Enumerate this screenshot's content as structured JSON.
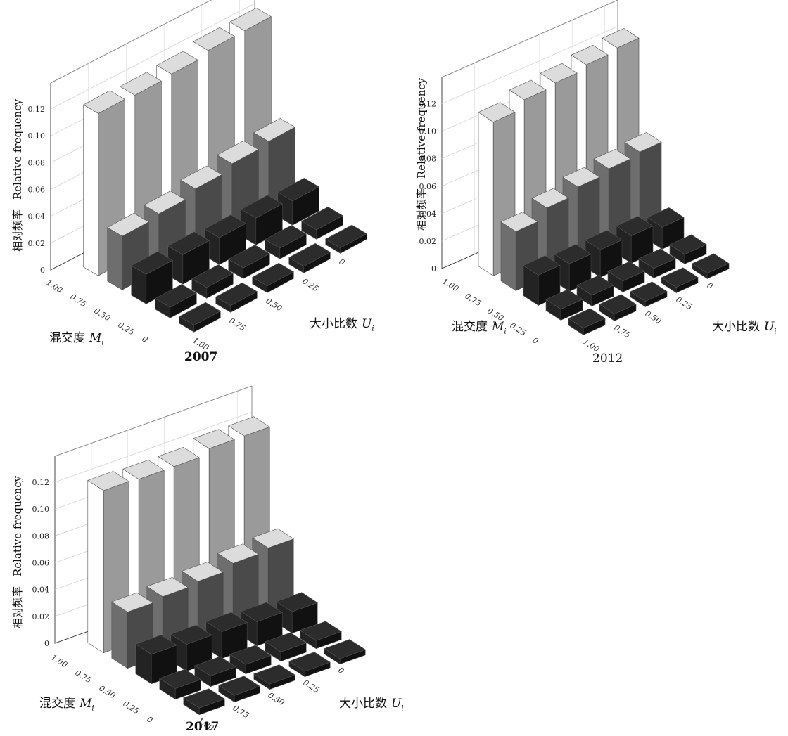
{
  "chart_data": [
    {
      "type": "bar3d",
      "title": "2007",
      "ylabel_en": "Relative frequency",
      "ylabel_cn": "相对频率",
      "xlabel_m": "混交度",
      "xlabel_m_sym": "M",
      "xlabel_m_sub": "i",
      "xlabel_u": "大小比数",
      "xlabel_u_sym": "U",
      "xlabel_u_sub": "i",
      "yticks": [
        "0",
        "0.02",
        "0.04",
        "0.06",
        "0.08",
        "0.10",
        "0.12"
      ],
      "ylim": [
        0,
        0.13
      ],
      "m_ticks": [
        "1.00",
        "0.75",
        "0.50",
        "0.25",
        "0"
      ],
      "u_ticks": [
        "0",
        "0.25",
        "0.50",
        "0.75",
        "1.00"
      ],
      "grid": true,
      "values": [
        [
          0.121,
          0.12,
          0.121,
          0.124,
          0.124
        ],
        [
          0.04,
          0.042,
          0.046,
          0.05,
          0.052
        ],
        [
          0.022,
          0.022,
          0.02,
          0.02,
          0.018
        ],
        [
          0.008,
          0.008,
          0.008,
          0.008,
          0.007
        ],
        [
          0.005,
          0.005,
          0.005,
          0.005,
          0.004
        ]
      ]
    },
    {
      "type": "bar3d",
      "title": "2012",
      "ylabel_en": "Relative frequency",
      "ylabel_cn": "相对频率",
      "xlabel_m": "混交度",
      "xlabel_m_sym": "M",
      "xlabel_m_sub": "i",
      "xlabel_u": "大小比数",
      "xlabel_u_sym": "U",
      "xlabel_u_sub": "i",
      "yticks": [
        "0",
        "0.02",
        "0.04",
        "0.06",
        "0.08",
        "0.10",
        "0.12"
      ],
      "ylim": [
        0,
        0.13
      ],
      "m_ticks": [
        "1.00",
        "0.75",
        "0.50",
        "0.25",
        "0"
      ],
      "u_ticks": [
        "0",
        "0.25",
        "0.50",
        "0.75",
        "1.00"
      ],
      "grid": true,
      "values": [
        [
          0.112,
          0.118,
          0.12,
          0.123,
          0.125
        ],
        [
          0.043,
          0.05,
          0.055,
          0.058,
          0.06
        ],
        [
          0.022,
          0.02,
          0.02,
          0.02,
          0.016
        ],
        [
          0.008,
          0.008,
          0.008,
          0.007,
          0.007
        ],
        [
          0.005,
          0.005,
          0.004,
          0.004,
          0.004
        ]
      ]
    },
    {
      "type": "bar3d",
      "title": "2017",
      "ylabel_en": "Relative frequency",
      "ylabel_cn": "相对频率",
      "xlabel_m": "混交度",
      "xlabel_m_sym": "M",
      "xlabel_m_sub": "i",
      "xlabel_u": "大小比数",
      "xlabel_u_sym": "U",
      "xlabel_u_sub": "i",
      "yticks": [
        "0",
        "0.02",
        "0.04",
        "0.06",
        "0.08",
        "0.10",
        "0.12"
      ],
      "ylim": [
        0,
        0.13
      ],
      "m_ticks": [
        "1.00",
        "0.75",
        "0.50",
        "0.25",
        "0"
      ],
      "u_ticks": [
        "0",
        "0.25",
        "0.50",
        "0.75",
        "1.00"
      ],
      "grid": true,
      "values": [
        [
          0.121,
          0.12,
          0.12,
          0.124,
          0.124
        ],
        [
          0.042,
          0.044,
          0.046,
          0.05,
          0.052
        ],
        [
          0.022,
          0.02,
          0.02,
          0.018,
          0.016
        ],
        [
          0.008,
          0.008,
          0.007,
          0.007,
          0.006
        ],
        [
          0.005,
          0.005,
          0.004,
          0.004,
          0.004
        ]
      ]
    }
  ],
  "colors": {
    "row0": [
      "#ffffff",
      "#9a9a9a",
      "#6f6f6f"
    ],
    "row1": [
      "#6e6e6e",
      "#4a4a4a",
      "#3a3a3a"
    ],
    "rowDark": [
      "#232323",
      "#111111",
      "#0a0a0a"
    ]
  }
}
